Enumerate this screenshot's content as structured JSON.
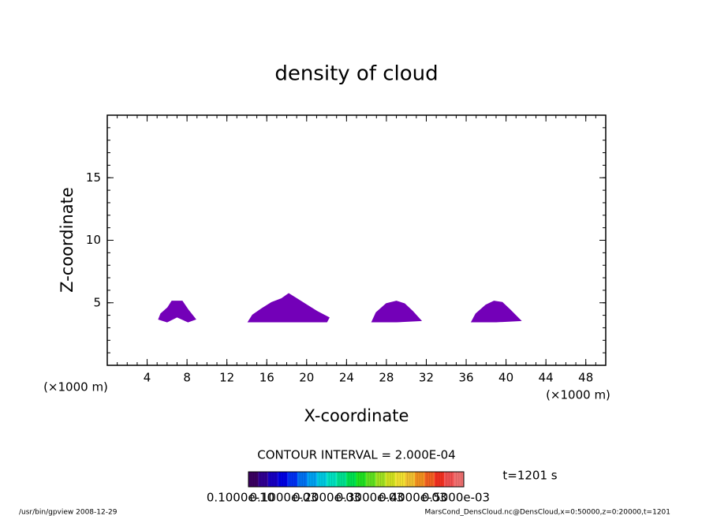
{
  "chart_data": {
    "type": "contour",
    "title": "density of cloud",
    "xlabel": "X-coordinate",
    "ylabel": "Z-coordinate",
    "xunit": "(×1000 m)",
    "xlim": [
      0,
      50
    ],
    "xticks": [
      4,
      8,
      12,
      16,
      20,
      24,
      28,
      32,
      36,
      40,
      44,
      48
    ],
    "ylim": [
      0,
      20
    ],
    "yticks": [
      5,
      10,
      15
    ],
    "minor_step": [
      1,
      1
    ],
    "color": "#7300b8",
    "regions": [
      {
        "x": [
          5.2,
          5.4,
          6.1,
          6.5,
          7.5,
          8.1,
          8.8,
          8.1,
          7.0,
          6.0
        ],
        "y": [
          3.7,
          4.1,
          4.6,
          5.1,
          5.1,
          4.4,
          3.7,
          3.5,
          3.9,
          3.5
        ]
      },
      {
        "x": [
          14.2,
          14.6,
          15.5,
          16.5,
          17.5,
          18.2,
          19.0,
          20.0,
          21.0,
          22.2,
          22.0,
          18.0
        ],
        "y": [
          3.5,
          4.0,
          4.5,
          5.0,
          5.3,
          5.7,
          5.3,
          4.8,
          4.3,
          3.8,
          3.5,
          3.5
        ]
      },
      {
        "x": [
          26.6,
          27.0,
          28.0,
          29.0,
          29.8,
          30.6,
          31.4,
          29.0
        ],
        "y": [
          3.5,
          4.2,
          4.9,
          5.1,
          4.9,
          4.3,
          3.6,
          3.5
        ]
      },
      {
        "x": [
          36.6,
          37.0,
          38.0,
          38.8,
          39.6,
          40.4,
          41.4,
          39.0
        ],
        "y": [
          3.5,
          4.1,
          4.8,
          5.1,
          5.0,
          4.4,
          3.6,
          3.5
        ]
      }
    ],
    "contour_interval": "CONTOUR INTERVAL = 2.000E-04",
    "time": "t=1201 s",
    "colorbar": {
      "colors": [
        "#3a0060",
        "#300090",
        "#1800c0",
        "#0000e0",
        "#0030f0",
        "#0070f0",
        "#00a0f0",
        "#00c8e0",
        "#00e0c0",
        "#00e090",
        "#00e050",
        "#20e020",
        "#60e020",
        "#a0e020",
        "#d0e020",
        "#f0e030",
        "#f0c030",
        "#f09020",
        "#f06020",
        "#f03020",
        "#f05050",
        "#f07070"
      ],
      "labels": [
        "0.1000e-10",
        "0.1000e-03",
        "0.2000e-03",
        "0.3000e-03",
        "0.4000e-03",
        "0.5000e-03"
      ]
    },
    "footer_left": "/usr/bin/gpview   2008-12-29",
    "footer_right": "MarsCond_DensCloud.nc@DensCloud,x=0:50000,z=0:20000,t=1201"
  }
}
